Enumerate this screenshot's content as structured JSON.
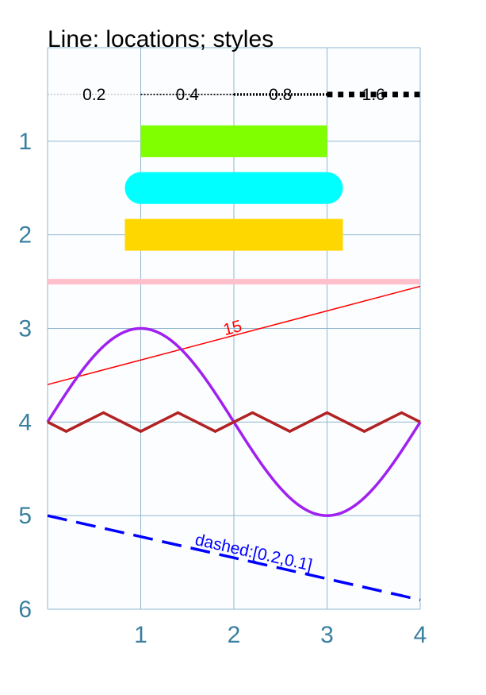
{
  "chart_data": {
    "type": "line",
    "title": "Line: locations; styles",
    "xlabel": "",
    "ylabel": "",
    "xlim": [
      0,
      4
    ],
    "ylim": [
      0,
      6
    ],
    "y_inverted": true,
    "grid": true,
    "x_ticks": [
      "1",
      "2",
      "3",
      "4"
    ],
    "y_ticks": [
      "1",
      "2",
      "3",
      "4",
      "5",
      "6"
    ],
    "colors": {
      "axis_text": "#3a7fa0",
      "grid": "#8fb8cf",
      "plot_bg": "#fbfdff"
    },
    "width_demo": {
      "y": 0.5,
      "segments": [
        {
          "label": "0.2",
          "x0": 0,
          "x1": 1,
          "width": 0.2,
          "color": "#aaaaaa",
          "dash": "dotted"
        },
        {
          "label": "0.4",
          "x0": 1,
          "x1": 2,
          "width": 0.4,
          "color": "#000000",
          "dash": "dotted"
        },
        {
          "label": "0.8",
          "x0": 2,
          "x1": 3,
          "width": 0.8,
          "color": "#000000",
          "dash": "dotted"
        },
        {
          "label": "1.6",
          "x0": 3,
          "x1": 4,
          "width": 1.6,
          "color": "#000000",
          "dash": "dotted"
        }
      ]
    },
    "thick_lines": [
      {
        "name": "butt",
        "x0": 1,
        "x1": 3,
        "y": 1.0,
        "color": "#7fff00",
        "cap": "butt"
      },
      {
        "name": "round",
        "x0": 1,
        "x1": 3,
        "y": 1.5,
        "color": "#00ffff",
        "cap": "round"
      },
      {
        "name": "square",
        "x0": 1,
        "x1": 3,
        "y": 2.0,
        "color": "#ffd700",
        "cap": "square"
      }
    ],
    "pink_line": {
      "y": 2.5,
      "color": "#ffc0cb"
    },
    "red_line": {
      "x0": 0,
      "y0": 3.6,
      "x1": 4,
      "y1": 2.55,
      "color": "#ff0000",
      "label": "15",
      "label_x": 2.0,
      "label_y": 3.05
    },
    "sine_curve": {
      "amplitude": 1.0,
      "center": 4.0,
      "color": "#a020f0"
    },
    "zigzag": {
      "center": 4.0,
      "amplitude": 0.1,
      "segments": 20,
      "color": "#b22222"
    },
    "dashed_line": {
      "x0": 0,
      "y0": 5.0,
      "x1": 4,
      "y1": 5.9,
      "color": "#0000ff",
      "label": "dashed:[0.2,0.1]",
      "label_x": 2.2,
      "label_y": 5.45
    }
  }
}
